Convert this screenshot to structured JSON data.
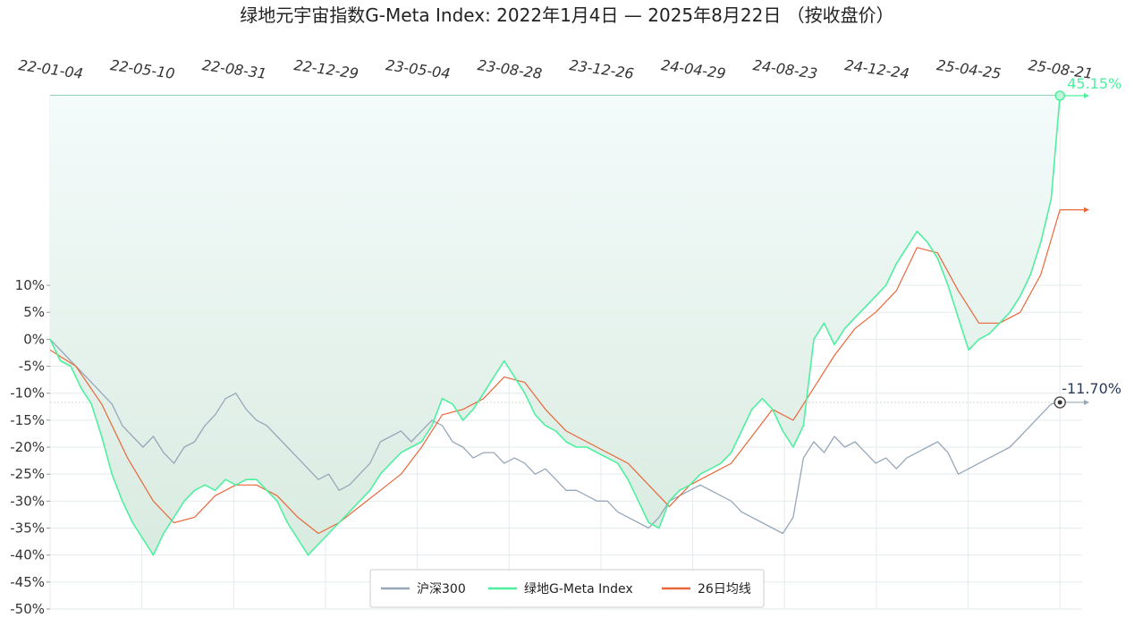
{
  "chart_data": {
    "type": "line",
    "title": "绿地元宇宙指数G-Meta Index:  2022年1月4日  —  2025年8月22日 （按收盘价）",
    "x_tick_labels": [
      "22-01-04",
      "22-05-10",
      "22-08-31",
      "22-12-29",
      "23-05-04",
      "23-08-28",
      "23-12-26",
      "24-04-29",
      "24-08-23",
      "24-12-24",
      "25-04-25",
      "25-08-21"
    ],
    "y_tick_labels": [
      "10%",
      "5%",
      "0%",
      "-5%",
      "-10%",
      "-15%",
      "-20%",
      "-25%",
      "-30%",
      "-35%",
      "-40%",
      "-45%",
      "-50%"
    ],
    "ylim": [
      -50,
      45.15
    ],
    "grid": true,
    "legend_position": "bottom-center",
    "end_labels": {
      "gmeta": "45.15%",
      "hs300": "-11.70%"
    },
    "colors": {
      "hs300": "#97a7b8",
      "gmeta": "#4ef0a0",
      "ma26": "#e8683a",
      "fill_top": "#f4fbfb",
      "fill_bottom": "#d9ebe0"
    },
    "series": [
      {
        "name": "沪深300",
        "key": "hs300",
        "points": [
          [
            0,
            0
          ],
          [
            4,
            -4
          ],
          [
            8,
            -8
          ],
          [
            12,
            -12
          ],
          [
            14,
            -16
          ],
          [
            16,
            -18
          ],
          [
            18,
            -20
          ],
          [
            20,
            -18
          ],
          [
            22,
            -21
          ],
          [
            24,
            -23
          ],
          [
            26,
            -20
          ],
          [
            28,
            -19
          ],
          [
            30,
            -16
          ],
          [
            32,
            -14
          ],
          [
            34,
            -11
          ],
          [
            36,
            -10
          ],
          [
            38,
            -13
          ],
          [
            40,
            -15
          ],
          [
            42,
            -16
          ],
          [
            44,
            -18
          ],
          [
            46,
            -20
          ],
          [
            48,
            -22
          ],
          [
            50,
            -24
          ],
          [
            52,
            -26
          ],
          [
            54,
            -25
          ],
          [
            56,
            -28
          ],
          [
            58,
            -27
          ],
          [
            60,
            -25
          ],
          [
            62,
            -23
          ],
          [
            64,
            -19
          ],
          [
            66,
            -18
          ],
          [
            68,
            -17
          ],
          [
            70,
            -19
          ],
          [
            72,
            -17
          ],
          [
            74,
            -15
          ],
          [
            76,
            -16
          ],
          [
            78,
            -19
          ],
          [
            80,
            -20
          ],
          [
            82,
            -22
          ],
          [
            84,
            -21
          ],
          [
            86,
            -21
          ],
          [
            88,
            -23
          ],
          [
            90,
            -22
          ],
          [
            92,
            -23
          ],
          [
            94,
            -25
          ],
          [
            96,
            -24
          ],
          [
            98,
            -26
          ],
          [
            100,
            -28
          ],
          [
            102,
            -28
          ],
          [
            104,
            -29
          ],
          [
            106,
            -30
          ],
          [
            108,
            -30
          ],
          [
            110,
            -32
          ],
          [
            112,
            -33
          ],
          [
            114,
            -34
          ],
          [
            116,
            -35
          ],
          [
            118,
            -33
          ],
          [
            120,
            -30
          ],
          [
            122,
            -29
          ],
          [
            124,
            -28
          ],
          [
            126,
            -27
          ],
          [
            128,
            -28
          ],
          [
            130,
            -29
          ],
          [
            132,
            -30
          ],
          [
            134,
            -32
          ],
          [
            136,
            -33
          ],
          [
            138,
            -34
          ],
          [
            140,
            -35
          ],
          [
            142,
            -36
          ],
          [
            144,
            -33
          ],
          [
            146,
            -22
          ],
          [
            148,
            -19
          ],
          [
            150,
            -21
          ],
          [
            152,
            -18
          ],
          [
            154,
            -20
          ],
          [
            156,
            -19
          ],
          [
            158,
            -21
          ],
          [
            160,
            -23
          ],
          [
            162,
            -22
          ],
          [
            164,
            -24
          ],
          [
            166,
            -22
          ],
          [
            168,
            -21
          ],
          [
            170,
            -20
          ],
          [
            172,
            -19
          ],
          [
            174,
            -21
          ],
          [
            176,
            -25
          ],
          [
            178,
            -24
          ],
          [
            180,
            -23
          ],
          [
            182,
            -22
          ],
          [
            184,
            -21
          ],
          [
            186,
            -20
          ],
          [
            188,
            -18
          ],
          [
            190,
            -16
          ],
          [
            192,
            -14
          ],
          [
            194,
            -12
          ],
          [
            195.7,
            -11.7
          ]
        ]
      },
      {
        "name": "绿地G-Meta Index",
        "key": "gmeta",
        "points": [
          [
            0,
            0
          ],
          [
            2,
            -4
          ],
          [
            4,
            -5
          ],
          [
            6,
            -9
          ],
          [
            8,
            -12
          ],
          [
            10,
            -18
          ],
          [
            12,
            -25
          ],
          [
            14,
            -30
          ],
          [
            16,
            -34
          ],
          [
            18,
            -37
          ],
          [
            20,
            -40
          ],
          [
            22,
            -36
          ],
          [
            24,
            -33
          ],
          [
            26,
            -30
          ],
          [
            28,
            -28
          ],
          [
            30,
            -27
          ],
          [
            32,
            -28
          ],
          [
            34,
            -26
          ],
          [
            36,
            -27
          ],
          [
            38,
            -26
          ],
          [
            40,
            -26
          ],
          [
            42,
            -28
          ],
          [
            44,
            -30
          ],
          [
            46,
            -34
          ],
          [
            48,
            -37
          ],
          [
            50,
            -40
          ],
          [
            52,
            -38
          ],
          [
            54,
            -36
          ],
          [
            56,
            -34
          ],
          [
            58,
            -32
          ],
          [
            60,
            -30
          ],
          [
            62,
            -28
          ],
          [
            64,
            -25
          ],
          [
            66,
            -23
          ],
          [
            68,
            -21
          ],
          [
            70,
            -20
          ],
          [
            72,
            -19
          ],
          [
            74,
            -16
          ],
          [
            76,
            -11
          ],
          [
            78,
            -12
          ],
          [
            80,
            -15
          ],
          [
            82,
            -13
          ],
          [
            84,
            -10
          ],
          [
            86,
            -7
          ],
          [
            88,
            -4
          ],
          [
            90,
            -7
          ],
          [
            92,
            -10
          ],
          [
            94,
            -14
          ],
          [
            96,
            -16
          ],
          [
            98,
            -17
          ],
          [
            100,
            -19
          ],
          [
            102,
            -20
          ],
          [
            104,
            -20
          ],
          [
            106,
            -21
          ],
          [
            108,
            -22
          ],
          [
            110,
            -23
          ],
          [
            112,
            -26
          ],
          [
            114,
            -30
          ],
          [
            116,
            -34
          ],
          [
            118,
            -35
          ],
          [
            120,
            -30
          ],
          [
            122,
            -28
          ],
          [
            124,
            -27
          ],
          [
            126,
            -25
          ],
          [
            128,
            -24
          ],
          [
            130,
            -23
          ],
          [
            132,
            -21
          ],
          [
            134,
            -17
          ],
          [
            136,
            -13
          ],
          [
            138,
            -11
          ],
          [
            140,
            -13
          ],
          [
            142,
            -17
          ],
          [
            144,
            -20
          ],
          [
            146,
            -16
          ],
          [
            148,
            0
          ],
          [
            150,
            3
          ],
          [
            152,
            -1
          ],
          [
            154,
            2
          ],
          [
            156,
            4
          ],
          [
            158,
            6
          ],
          [
            160,
            8
          ],
          [
            162,
            10
          ],
          [
            164,
            14
          ],
          [
            166,
            17
          ],
          [
            168,
            20
          ],
          [
            170,
            18
          ],
          [
            172,
            15
          ],
          [
            174,
            10
          ],
          [
            176,
            4
          ],
          [
            178,
            -2
          ],
          [
            180,
            0
          ],
          [
            182,
            1
          ],
          [
            184,
            3
          ],
          [
            186,
            5
          ],
          [
            188,
            8
          ],
          [
            190,
            12
          ],
          [
            192,
            18
          ],
          [
            194,
            26
          ],
          [
            195.7,
            45.15
          ]
        ]
      },
      {
        "name": "26日均线",
        "key": "ma26",
        "points": [
          [
            0,
            -2
          ],
          [
            5,
            -5
          ],
          [
            10,
            -12
          ],
          [
            15,
            -22
          ],
          [
            20,
            -30
          ],
          [
            24,
            -34
          ],
          [
            28,
            -33
          ],
          [
            32,
            -29
          ],
          [
            36,
            -27
          ],
          [
            40,
            -27
          ],
          [
            44,
            -29
          ],
          [
            48,
            -33
          ],
          [
            52,
            -36
          ],
          [
            56,
            -34
          ],
          [
            60,
            -31
          ],
          [
            64,
            -28
          ],
          [
            68,
            -25
          ],
          [
            72,
            -20
          ],
          [
            76,
            -14
          ],
          [
            80,
            -13
          ],
          [
            84,
            -11
          ],
          [
            88,
            -7
          ],
          [
            92,
            -8
          ],
          [
            96,
            -13
          ],
          [
            100,
            -17
          ],
          [
            104,
            -19
          ],
          [
            108,
            -21
          ],
          [
            112,
            -23
          ],
          [
            116,
            -27
          ],
          [
            120,
            -31
          ],
          [
            124,
            -27
          ],
          [
            128,
            -25
          ],
          [
            132,
            -23
          ],
          [
            136,
            -18
          ],
          [
            140,
            -13
          ],
          [
            144,
            -15
          ],
          [
            148,
            -9
          ],
          [
            152,
            -3
          ],
          [
            156,
            2
          ],
          [
            160,
            5
          ],
          [
            164,
            9
          ],
          [
            168,
            17
          ],
          [
            172,
            16
          ],
          [
            176,
            9
          ],
          [
            180,
            3
          ],
          [
            184,
            3
          ],
          [
            188,
            5
          ],
          [
            192,
            12
          ],
          [
            195.7,
            24
          ]
        ]
      }
    ]
  }
}
